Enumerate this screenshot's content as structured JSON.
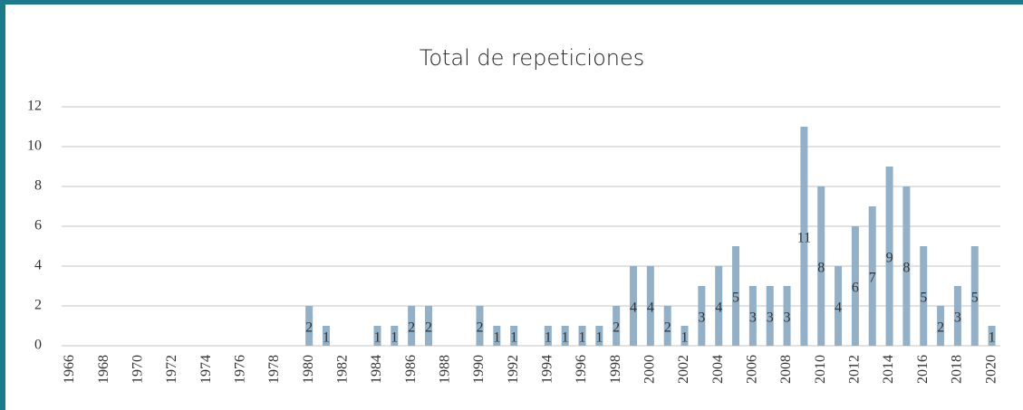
{
  "chart_data": {
    "type": "bar",
    "title": "Total de repeticiones",
    "categories": [
      "1966",
      null,
      "1968",
      null,
      "1970",
      null,
      "1972",
      null,
      "1974",
      null,
      "1976",
      null,
      "1978",
      null,
      "1980",
      null,
      "1982",
      null,
      "1984",
      null,
      "1986",
      null,
      "1988",
      null,
      "1990",
      null,
      "1992",
      null,
      "1994",
      null,
      "1996",
      null,
      "1998",
      null,
      "2000",
      null,
      "2002",
      null,
      "2004",
      null,
      "2006",
      null,
      "2008",
      null,
      "2010",
      null,
      "2012",
      null,
      "2014",
      null,
      "2016",
      null,
      "2018",
      null,
      "2020"
    ],
    "values": [
      0,
      0,
      0,
      0,
      0,
      0,
      0,
      0,
      0,
      0,
      0,
      0,
      0,
      0,
      2,
      1,
      0,
      0,
      1,
      1,
      2,
      2,
      0,
      0,
      2,
      1,
      1,
      0,
      1,
      1,
      1,
      1,
      2,
      4,
      4,
      2,
      1,
      3,
      4,
      5,
      3,
      3,
      3,
      11,
      8,
      4,
      6,
      7,
      9,
      8,
      5,
      2,
      3,
      5,
      1
    ],
    "color": "#92b0c8",
    "ylim": [
      0,
      12
    ],
    "yticks": [
      0,
      2,
      4,
      6,
      8,
      10,
      12
    ],
    "grid": true
  }
}
